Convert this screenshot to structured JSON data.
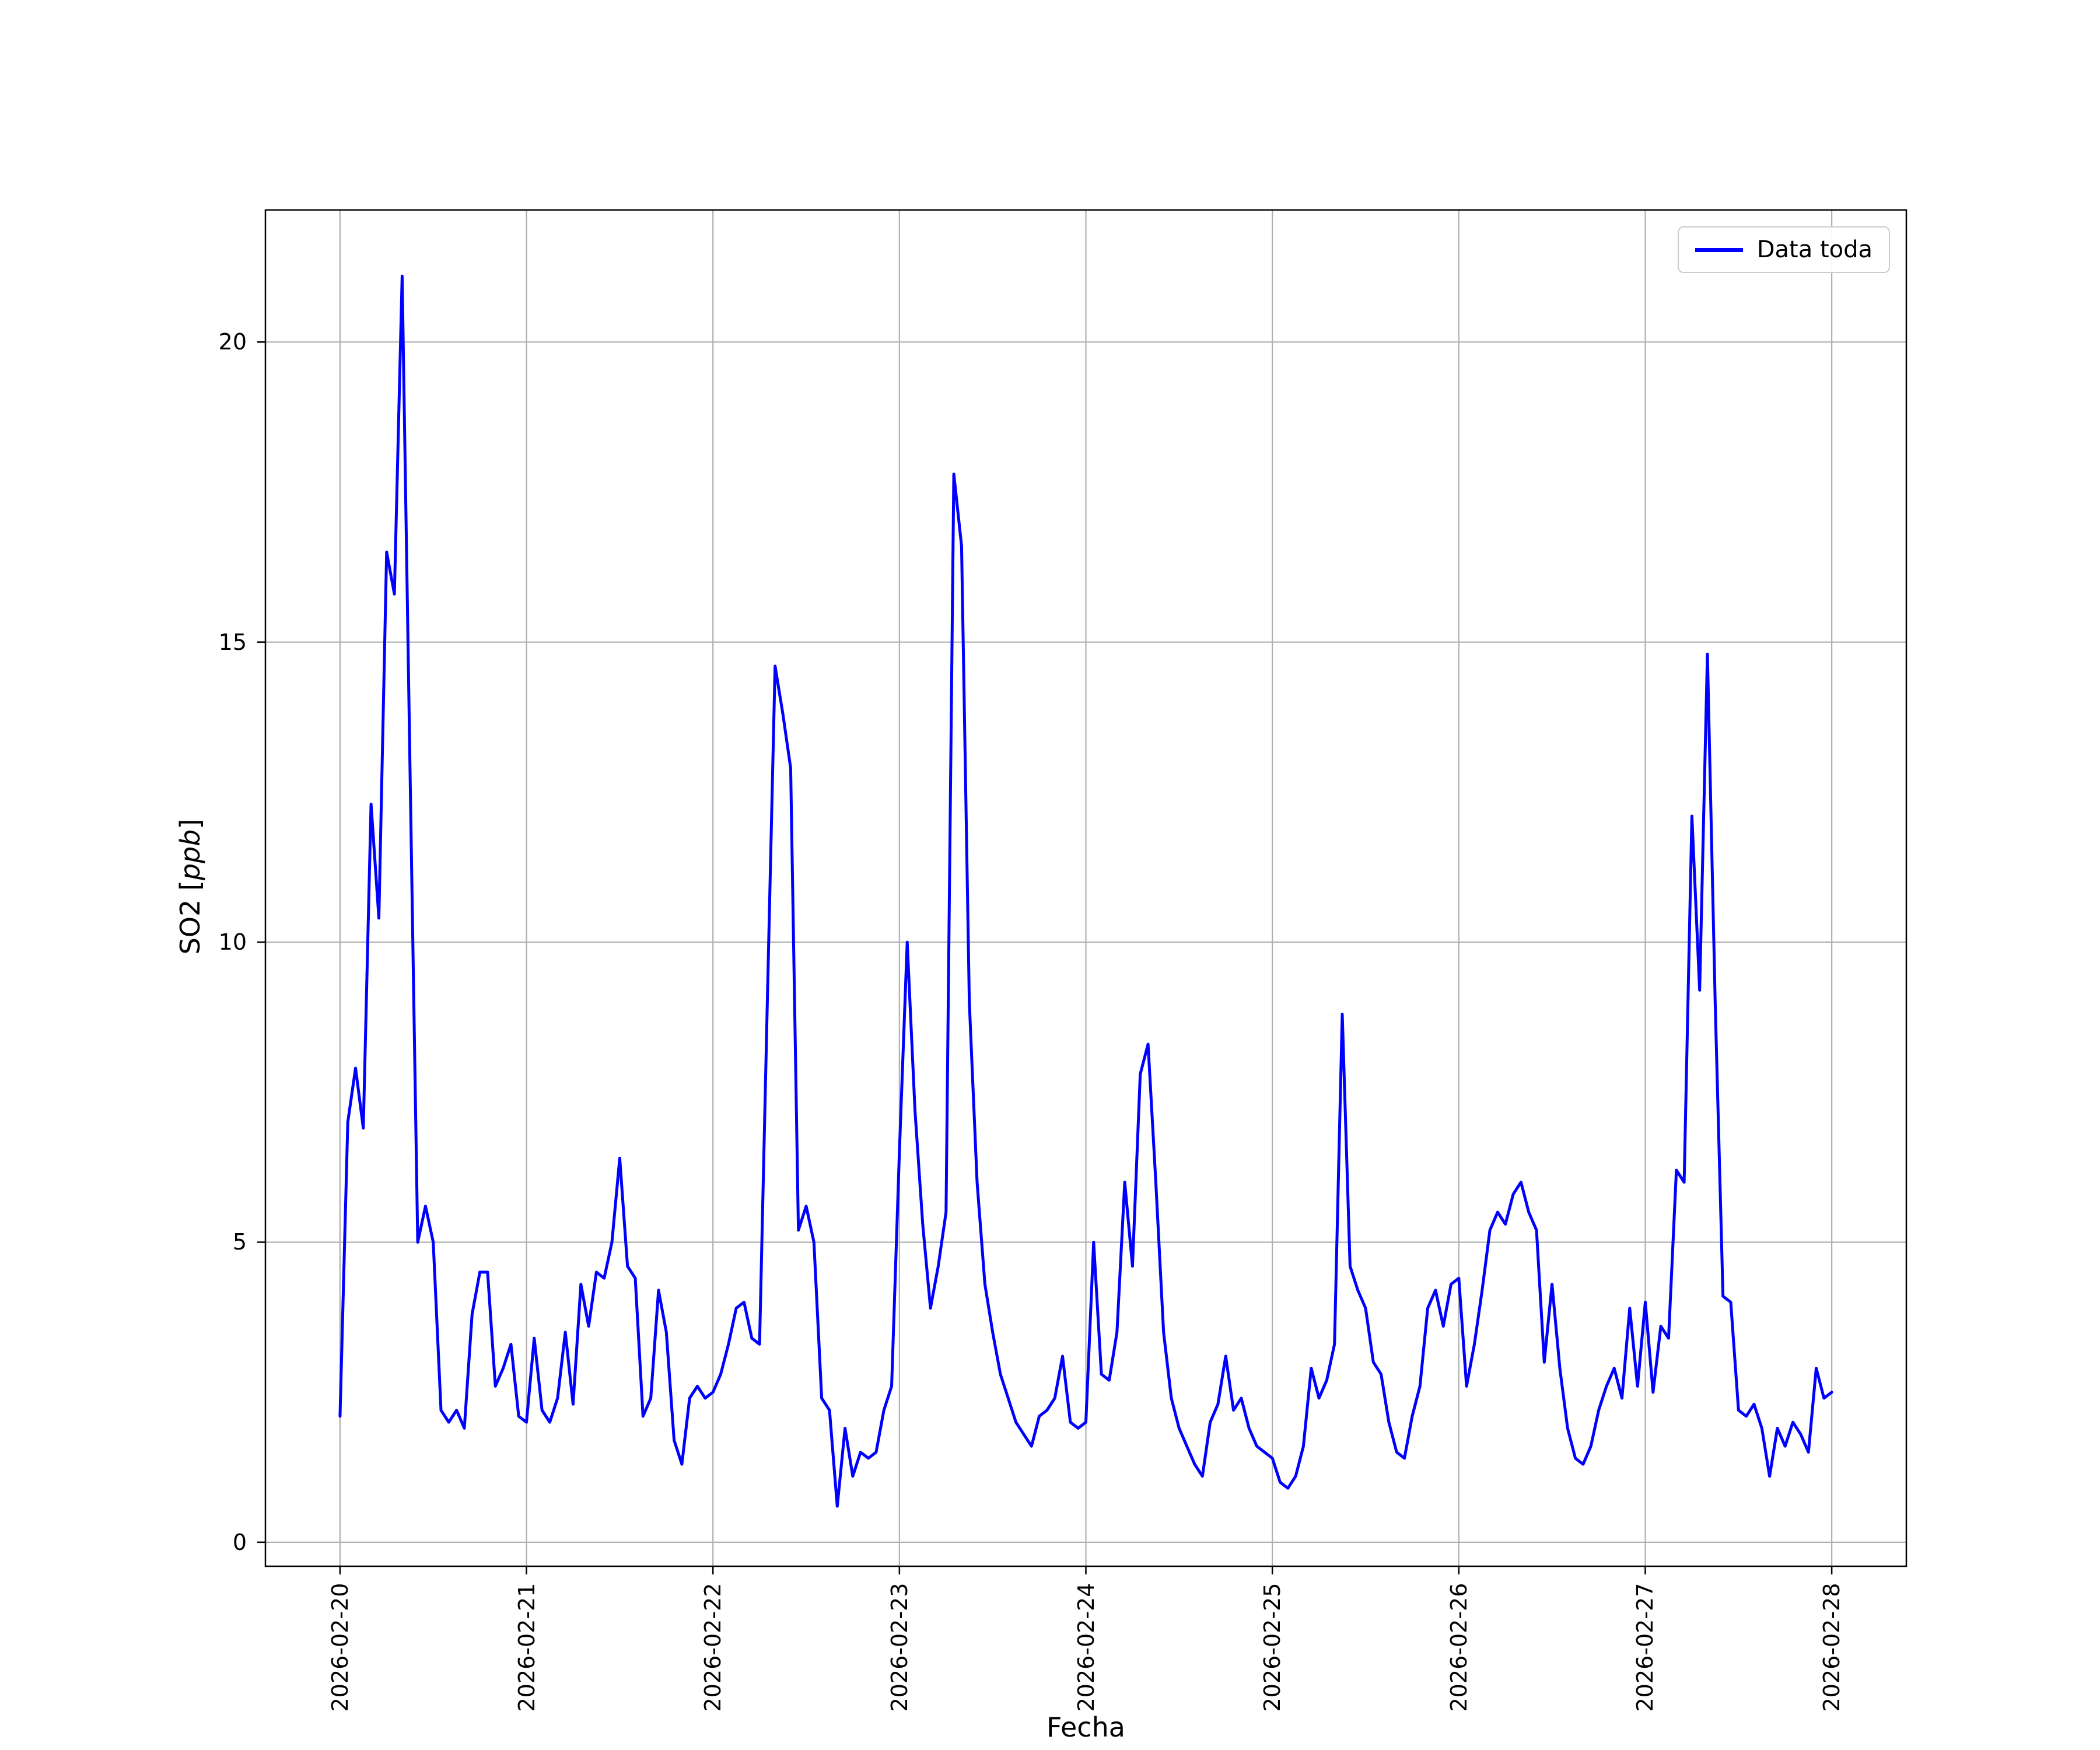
{
  "figure": {
    "background": "#ffffff"
  },
  "chart_data": {
    "type": "line",
    "xlabel": "Fecha",
    "ylabel": "SO2 [ppb]",
    "ylabel_parts": {
      "prefix": "SO2 [",
      "italic": "ppb",
      "suffix": "]"
    },
    "grid": true,
    "grid_color": "#b0b0b0",
    "legend": {
      "location": "upper right",
      "entries": [
        {
          "label": "Data toda",
          "color": "#0000ff"
        }
      ]
    },
    "x_axis": {
      "label": "Fecha",
      "tick_labels": [
        "2026-02-20",
        "2026-02-21",
        "2026-02-22",
        "2026-02-23",
        "2026-02-24",
        "2026-02-25",
        "2026-02-26",
        "2026-02-27",
        "2026-02-28"
      ],
      "tick_positions_days": [
        0,
        1,
        2,
        3,
        4,
        5,
        6,
        7,
        8
      ],
      "lim_days": [
        -0.4,
        8.4
      ],
      "label_rotation_deg": 90
    },
    "y_axis": {
      "label": "SO2 [ppb]",
      "ticks": [
        0,
        5,
        10,
        15,
        20
      ],
      "lim": [
        -0.4,
        22.2
      ]
    },
    "series": [
      {
        "name": "Data toda",
        "color": "#0000ff",
        "x_unit": "hours since 2026-02-20 00:00",
        "x_step_hours": 1,
        "values": [
          2.1,
          7.0,
          7.9,
          6.9,
          12.3,
          10.4,
          16.5,
          15.8,
          21.1,
          13.0,
          5.0,
          5.6,
          5.0,
          2.2,
          2.0,
          2.2,
          1.9,
          3.8,
          4.5,
          4.5,
          2.6,
          2.9,
          3.3,
          2.1,
          2.0,
          3.4,
          2.2,
          2.0,
          2.4,
          3.5,
          2.3,
          4.3,
          3.6,
          4.5,
          4.4,
          5.0,
          6.4,
          4.6,
          4.4,
          2.1,
          2.4,
          4.2,
          3.5,
          1.7,
          1.3,
          2.4,
          2.6,
          2.4,
          2.5,
          2.8,
          3.3,
          3.9,
          4.0,
          3.4,
          3.3,
          9.0,
          14.6,
          13.8,
          12.9,
          5.2,
          5.6,
          5.0,
          2.4,
          2.2,
          0.6,
          1.9,
          1.1,
          1.5,
          1.4,
          1.5,
          2.2,
          2.6,
          6.5,
          10.0,
          7.2,
          5.3,
          3.9,
          4.6,
          5.5,
          17.8,
          16.6,
          9.0,
          6.0,
          4.3,
          3.5,
          2.8,
          2.4,
          2.0,
          1.8,
          1.6,
          2.1,
          2.2,
          2.4,
          3.1,
          2.0,
          1.9,
          2.0,
          5.0,
          2.8,
          2.7,
          3.5,
          6.0,
          4.6,
          7.8,
          8.3,
          6.0,
          3.5,
          2.4,
          1.9,
          1.6,
          1.3,
          1.1,
          2.0,
          2.3,
          3.1,
          2.2,
          2.4,
          1.9,
          1.6,
          1.5,
          1.4,
          1.0,
          0.9,
          1.1,
          1.6,
          2.9,
          2.4,
          2.7,
          3.3,
          8.8,
          4.6,
          4.2,
          3.9,
          3.0,
          2.8,
          2.0,
          1.5,
          1.4,
          2.1,
          2.6,
          3.9,
          4.2,
          3.6,
          4.3,
          4.4,
          2.6,
          3.3,
          4.2,
          5.2,
          5.5,
          5.3,
          5.8,
          6.0,
          5.5,
          5.2,
          3.0,
          4.3,
          2.9,
          1.9,
          1.4,
          1.3,
          1.6,
          2.2,
          2.6,
          2.9,
          2.4,
          3.9,
          2.6,
          4.0,
          2.5,
          3.6,
          3.4,
          6.2,
          6.0,
          12.1,
          9.2,
          14.8,
          9.0,
          4.1,
          4.0,
          2.2,
          2.1,
          2.3,
          1.9,
          1.1,
          1.9,
          1.6,
          2.0,
          1.8,
          1.5,
          2.9,
          2.4,
          2.5
        ]
      }
    ]
  }
}
